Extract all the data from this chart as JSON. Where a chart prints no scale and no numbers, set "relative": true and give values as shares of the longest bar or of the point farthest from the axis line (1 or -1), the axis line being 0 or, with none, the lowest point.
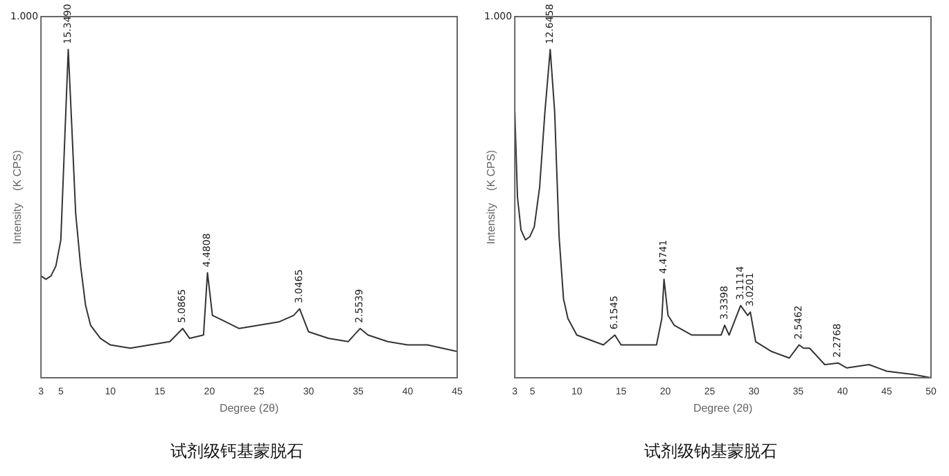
{
  "chart_data": [
    {
      "type": "line",
      "title": "试剂级钙基蒙脱石",
      "xlabel": "Degree (2θ)",
      "ylabel": "Intensity    (K CPS)",
      "relative": true,
      "color": "#333333",
      "xlim": [
        3,
        45
      ],
      "xticks": [
        3,
        5,
        10,
        15,
        20,
        25,
        30,
        35,
        40,
        45
      ],
      "grid": false,
      "legend": false,
      "marker": "none",
      "line_style": "solid",
      "x": [
        3,
        3.5,
        4,
        4.5,
        5,
        5.4,
        5.75,
        6.1,
        6.5,
        7,
        7.5,
        8,
        9,
        10,
        12,
        14,
        16,
        17.3,
        18,
        19.4,
        19.8,
        20.3,
        21,
        23,
        25,
        27,
        28.5,
        29.1,
        30,
        32,
        34,
        35.2,
        36,
        38,
        40,
        42,
        45
      ],
      "values": [
        0.31,
        0.3,
        0.31,
        0.34,
        0.42,
        0.73,
        1,
        0.77,
        0.5,
        0.34,
        0.22,
        0.16,
        0.12,
        0.1,
        0.09,
        0.1,
        0.11,
        0.15,
        0.12,
        0.13,
        0.32,
        0.19,
        0.18,
        0.15,
        0.16,
        0.17,
        0.19,
        0.21,
        0.14,
        0.12,
        0.11,
        0.15,
        0.13,
        0.11,
        0.1,
        0.1,
        0.08
      ],
      "annotations": [
        "1.000",
        {
          "text": "15.3490",
          "x": 5.75,
          "y": 1
        },
        {
          "text": "5.0865",
          "x": 17.3,
          "y": 0.15
        },
        {
          "text": "4.4808",
          "x": 19.8,
          "y": 0.32
        },
        {
          "text": "3.0465",
          "x": 29.1,
          "y": 0.21
        },
        {
          "text": "2.5539",
          "x": 35.2,
          "y": 0.15
        }
      ]
    },
    {
      "type": "line",
      "title": "试剂级钠基蒙脱石",
      "xlabel": "Degree (2θ)",
      "ylabel": "Intensity    (K CPS)",
      "relative": true,
      "color": "#333333",
      "xlim": [
        3,
        50
      ],
      "xticks": [
        3,
        5,
        10,
        15,
        20,
        25,
        30,
        35,
        40,
        45,
        50
      ],
      "grid": false,
      "legend": false,
      "marker": "none",
      "line_style": "solid",
      "x": [
        3,
        3.3,
        3.7,
        4.2,
        4.7,
        5.2,
        5.8,
        6.4,
        7,
        7.5,
        8,
        8.5,
        9,
        10,
        11,
        12,
        13,
        14.3,
        15,
        17,
        19,
        19.6,
        19.85,
        20.3,
        21,
        23,
        25,
        26.3,
        26.7,
        27.2,
        28.5,
        29.3,
        29.6,
        30.2,
        32,
        34,
        35.1,
        35.6,
        36.3,
        38,
        39.5,
        40.5,
        43,
        45,
        48,
        50
      ],
      "values": [
        0.81,
        0.55,
        0.45,
        0.42,
        0.43,
        0.46,
        0.58,
        0.81,
        1,
        0.81,
        0.43,
        0.24,
        0.18,
        0.13,
        0.12,
        0.11,
        0.1,
        0.13,
        0.1,
        0.1,
        0.1,
        0.18,
        0.3,
        0.19,
        0.16,
        0.13,
        0.13,
        0.13,
        0.16,
        0.13,
        0.22,
        0.19,
        0.2,
        0.11,
        0.08,
        0.06,
        0.1,
        0.09,
        0.09,
        0.04,
        0.045,
        0.03,
        0.04,
        0.02,
        0.01,
        0
      ],
      "annotations": [
        "1.000",
        {
          "text": "12.6458",
          "x": 7,
          "y": 1
        },
        {
          "text": "6.1545",
          "x": 14.3,
          "y": 0.13
        },
        {
          "text": "4.4741",
          "x": 19.85,
          "y": 0.3
        },
        {
          "text": "3.3398",
          "x": 26.7,
          "y": 0.16
        },
        {
          "text": "3.1114",
          "x": 28.5,
          "y": 0.22
        },
        {
          "text": "3.0201",
          "x": 29.6,
          "y": 0.2
        },
        {
          "text": "2.5462",
          "x": 35.1,
          "y": 0.1
        },
        {
          "text": "2.2768",
          "x": 39.5,
          "y": 0.045
        }
      ]
    }
  ]
}
